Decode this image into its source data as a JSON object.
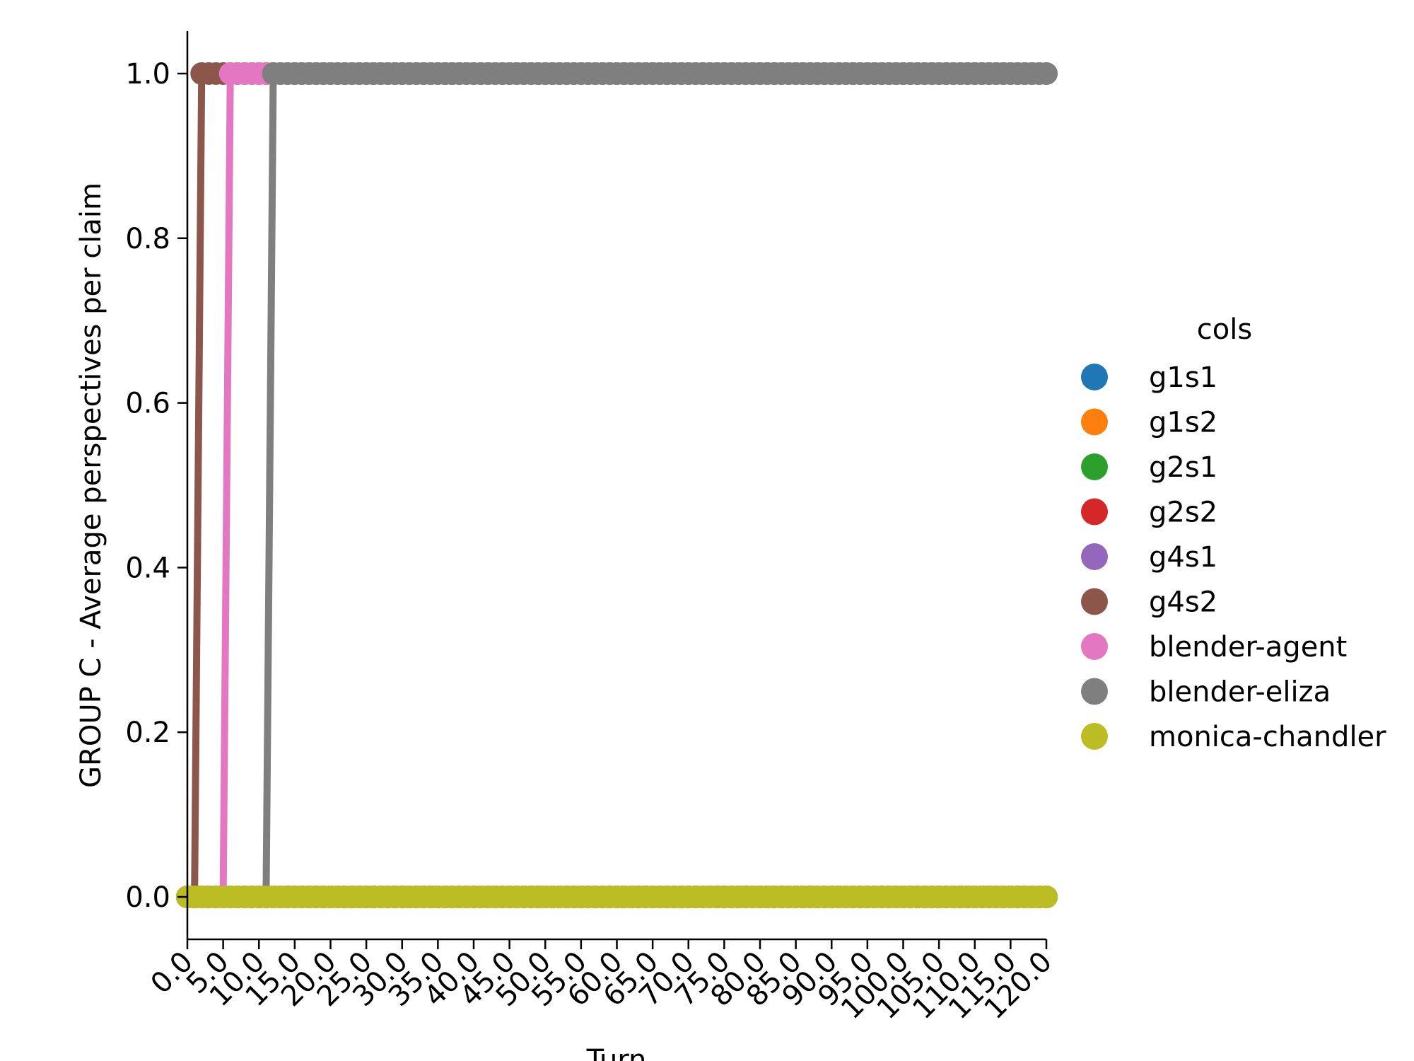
{
  "chart_data": {
    "type": "line",
    "xlabel": "Turn",
    "ylabel": "GROUP C - Average perspectives per claim",
    "xlim": [
      0,
      120
    ],
    "ylim": [
      -0.05,
      1.05
    ],
    "xticks": [
      "0.0",
      "5.0",
      "10.0",
      "15.0",
      "20.0",
      "25.0",
      "30.0",
      "35.0",
      "40.0",
      "45.0",
      "50.0",
      "55.0",
      "60.0",
      "65.0",
      "70.0",
      "75.0",
      "80.0",
      "85.0",
      "90.0",
      "95.0",
      "100.0",
      "105.0",
      "110.0",
      "115.0",
      "120.0"
    ],
    "yticks": [
      "0.0",
      "0.2",
      "0.4",
      "0.6",
      "0.8",
      "1.0"
    ],
    "grid": false,
    "legend": {
      "title": "cols",
      "placement": "right"
    },
    "markers": "circle",
    "x_step": 1,
    "series": [
      {
        "name": "g1s1",
        "color": "#1f77b4",
        "steps": [
          {
            "from": 0,
            "to": 120,
            "value": 0
          }
        ]
      },
      {
        "name": "g1s2",
        "color": "#ff7f0e",
        "steps": [
          {
            "from": 0,
            "to": 120,
            "value": 0
          }
        ]
      },
      {
        "name": "g2s1",
        "color": "#2ca02c",
        "steps": [
          {
            "from": 0,
            "to": 120,
            "value": 0
          }
        ]
      },
      {
        "name": "g2s2",
        "color": "#d62728",
        "steps": [
          {
            "from": 0,
            "to": 120,
            "value": 0
          }
        ]
      },
      {
        "name": "g4s1",
        "color": "#9467bd",
        "steps": [
          {
            "from": 0,
            "to": 120,
            "value": 0
          }
        ]
      },
      {
        "name": "g4s2",
        "color": "#8c564b",
        "steps": [
          {
            "from": 0,
            "to": 1,
            "value": 0
          },
          {
            "from": 2,
            "to": 120,
            "value": 1
          }
        ]
      },
      {
        "name": "blender-agent",
        "color": "#e377c2",
        "steps": [
          {
            "from": 0,
            "to": 5,
            "value": 0
          },
          {
            "from": 6,
            "to": 120,
            "value": 1
          }
        ]
      },
      {
        "name": "blender-eliza",
        "color": "#7f7f7f",
        "steps": [
          {
            "from": 0,
            "to": 11,
            "value": 0
          },
          {
            "from": 12,
            "to": 120,
            "value": 1
          }
        ]
      },
      {
        "name": "monica-chandler",
        "color": "#bcbd22",
        "steps": [
          {
            "from": 0,
            "to": 120,
            "value": 0
          }
        ]
      }
    ]
  }
}
